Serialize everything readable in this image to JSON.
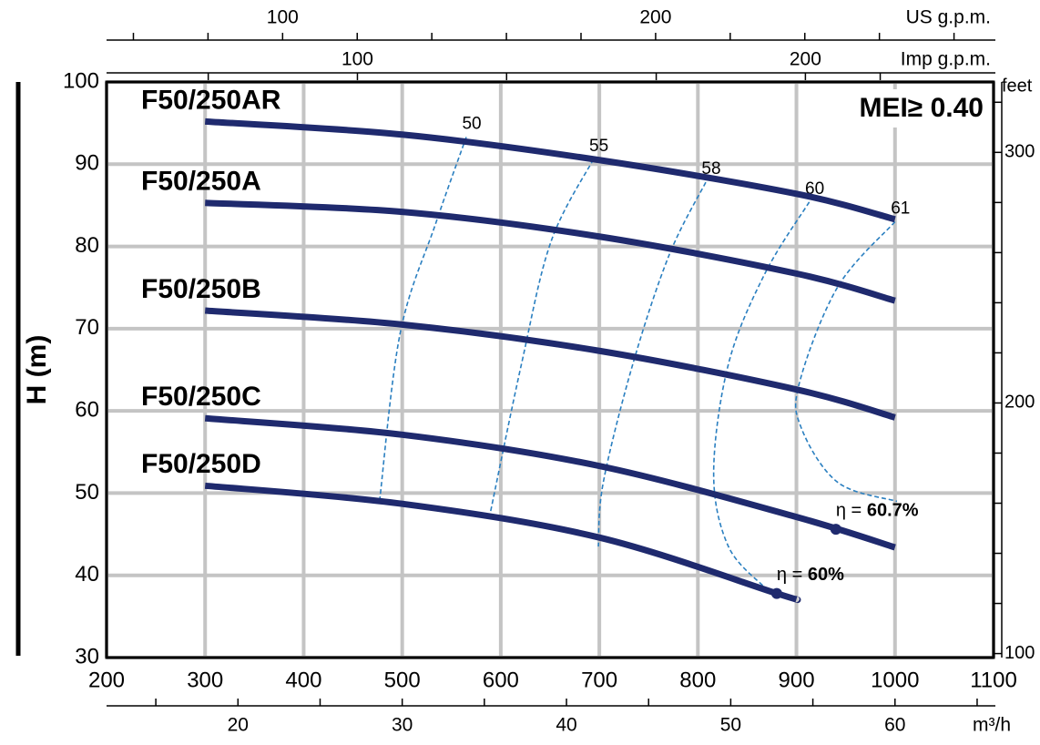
{
  "chart_data": {
    "type": "line",
    "y_label": "H (m)",
    "annotation": "MEI≥ 0.40",
    "xlim": [
      200,
      1100
    ],
    "xticks": [
      200,
      300,
      400,
      500,
      600,
      700,
      800,
      900,
      1000,
      1100
    ],
    "ylim": [
      30,
      100
    ],
    "yticks": [
      30,
      40,
      50,
      60,
      70,
      80,
      90,
      100
    ],
    "grid": true,
    "y2_label": "feet",
    "y2lim": [
      98.4,
      328.1
    ],
    "y2ticks": [
      100,
      200,
      300
    ],
    "y2minor": [
      120,
      140,
      160,
      180,
      220,
      240,
      260,
      280,
      320
    ],
    "top_axes": [
      {
        "label": "US g.p.m.",
        "lim": [
          52.8,
          290.6
        ],
        "ticks": [
          100,
          200
        ],
        "minor": [
          60,
          80,
          120,
          140,
          160,
          180,
          220,
          240,
          260,
          280
        ]
      },
      {
        "label": "Imp g.p.m.",
        "lim": [
          44,
          242
        ],
        "ticks": [
          100,
          200
        ],
        "minor": [
          66.7,
          133.3,
          166.7,
          216.7
        ]
      }
    ],
    "bottom_axis": {
      "label": "m³/h",
      "lim": [
        12,
        66
      ],
      "ticks": [
        20,
        30,
        40,
        50,
        60
      ],
      "minor": [
        15,
        25,
        35,
        45,
        55,
        65
      ]
    },
    "series": [
      {
        "name": "F50/250AR",
        "color": "#1f2a6e",
        "x": [
          300,
          500,
          700,
          900,
          1000
        ],
        "values": [
          95.2,
          93.6,
          90.5,
          86.4,
          83.3
        ]
      },
      {
        "name": "F50/250A",
        "color": "#1f2a6e",
        "x": [
          300,
          500,
          700,
          900,
          1000
        ],
        "values": [
          85.3,
          84.2,
          81.2,
          76.7,
          73.4
        ]
      },
      {
        "name": "F50/250B",
        "color": "#1f2a6e",
        "x": [
          300,
          500,
          700,
          900,
          1000
        ],
        "values": [
          72.2,
          70.5,
          67.3,
          62.6,
          59.2
        ]
      },
      {
        "name": "F50/250C",
        "color": "#1f2a6e",
        "x": [
          300,
          500,
          700,
          900,
          1000
        ],
        "values": [
          59.1,
          57.1,
          53.3,
          47.1,
          43.4
        ]
      },
      {
        "name": "F50/250D",
        "color": "#1f2a6e",
        "x": [
          300,
          500,
          700,
          880,
          900
        ],
        "values": [
          50.9,
          48.7,
          44.6,
          37.8,
          37.1
        ]
      }
    ],
    "efficiency_curves": [
      {
        "name": "50",
        "color": "#2a7fc0",
        "x": [
          565,
          534,
          498,
          477
        ],
        "values": [
          93.3,
          82.8,
          69.5,
          49
        ]
      },
      {
        "name": "55",
        "color": "#2a7fc0",
        "x": [
          694,
          651,
          621,
          588
        ],
        "values": [
          90.6,
          80.6,
          65.7,
          46.8
        ]
      },
      {
        "name": "58",
        "color": "#2a7fc0",
        "x": [
          808,
          771,
          734,
          704,
          699
        ],
        "values": [
          87.8,
          79,
          65.7,
          51.3,
          43.5
        ]
      },
      {
        "name": "60",
        "color": "#2a7fc0",
        "x": [
          913,
          868,
          831,
          816,
          831,
          868
        ],
        "values": [
          85.4,
          76.7,
          65.7,
          52.4,
          43.5,
          38.5
        ]
      },
      {
        "name": "61",
        "color": "#2a7fc0",
        "x": [
          1000,
          942,
          903,
          905,
          942,
          1002
        ],
        "values": [
          83,
          75.1,
          63.4,
          57.9,
          51.3,
          49
        ]
      }
    ],
    "points": [
      {
        "name": "η =",
        "x": 940,
        "y": 45.6,
        "label": "60.7%"
      },
      {
        "name": "η =",
        "x": 880,
        "y": 37.8,
        "label": "60%"
      }
    ]
  }
}
